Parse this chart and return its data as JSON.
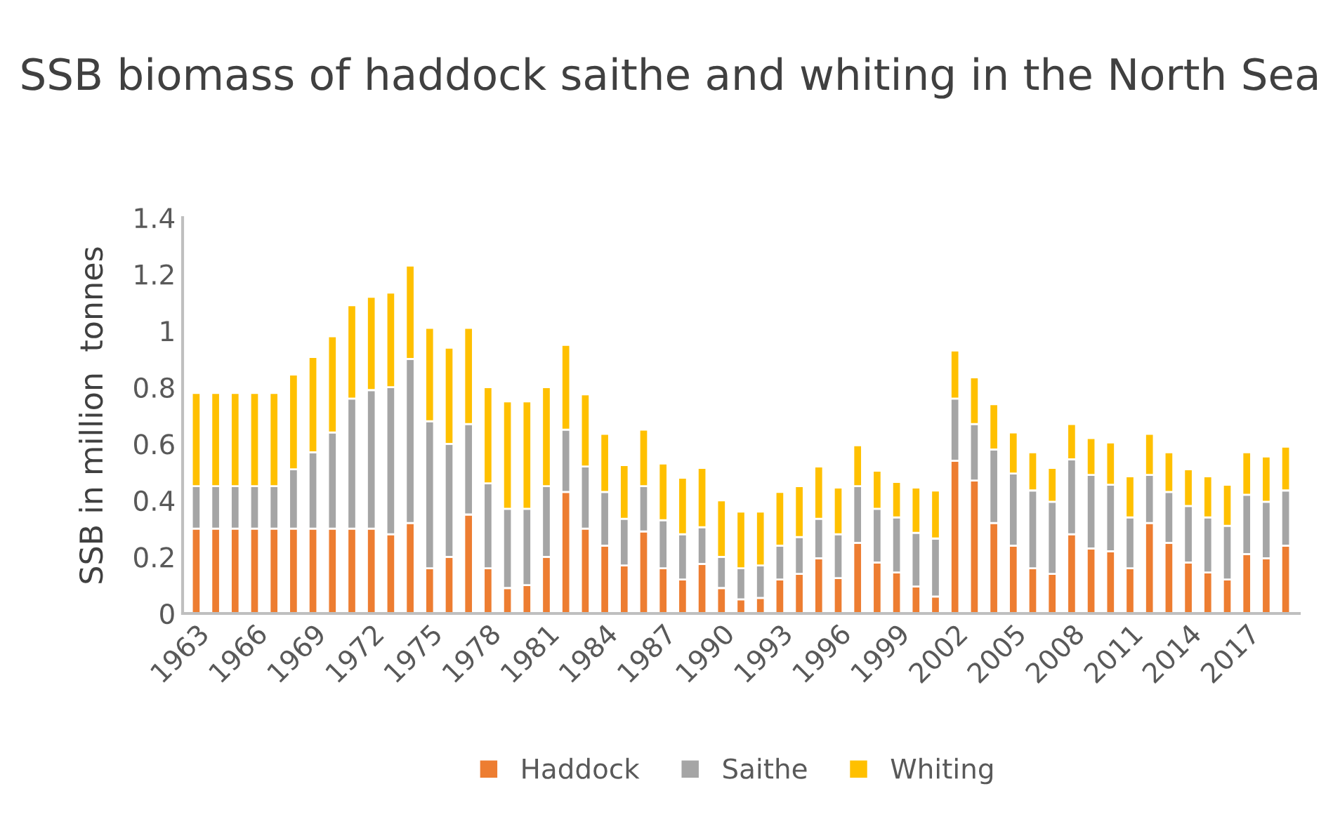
{
  "chart_data": {
    "type": "bar",
    "stacked": true,
    "title": "SSB biomass of haddock saithe and whiting in the North Sea",
    "ylabel": "SSB in million  tonnes",
    "categories": [
      "1963",
      null,
      null,
      "1966",
      null,
      null,
      "1969",
      null,
      null,
      "1972",
      null,
      null,
      "1975",
      null,
      null,
      "1978",
      null,
      null,
      "1981",
      null,
      null,
      "1984",
      null,
      null,
      "1987",
      null,
      null,
      "1990",
      null,
      null,
      "1993",
      null,
      null,
      "1996",
      null,
      null,
      "1999",
      null,
      null,
      "2002",
      null,
      null,
      "2005",
      null,
      null,
      "2008",
      null,
      null,
      "2011",
      null,
      null,
      "2014",
      null,
      null,
      "2017",
      null,
      null
    ],
    "series": [
      {
        "name": "Haddock",
        "color": "#ed7d31",
        "values": [
          0.3,
          0.3,
          0.3,
          0.3,
          0.3,
          0.3,
          0.3,
          0.3,
          0.3,
          0.3,
          0.28,
          0.32,
          0.16,
          0.2,
          0.35,
          0.16,
          0.09,
          0.1,
          0.2,
          0.43,
          0.3,
          0.24,
          0.17,
          0.29,
          0.16,
          0.12,
          0.175,
          0.09,
          0.05,
          0.055,
          0.12,
          0.14,
          0.195,
          0.125,
          0.25,
          0.18,
          0.145,
          0.095,
          0.06,
          0.54,
          0.47,
          0.32,
          0.24,
          0.16,
          0.14,
          0.28,
          0.23,
          0.22,
          0.16,
          0.32,
          0.25,
          0.18,
          0.145,
          0.12,
          0.21,
          0.195,
          0.24
        ]
      },
      {
        "name": "Saithe",
        "color": "#a5a5a5",
        "values": [
          0.15,
          0.15,
          0.15,
          0.15,
          0.15,
          0.21,
          0.27,
          0.34,
          0.46,
          0.49,
          0.52,
          0.58,
          0.52,
          0.4,
          0.32,
          0.3,
          0.28,
          0.27,
          0.25,
          0.22,
          0.22,
          0.19,
          0.165,
          0.16,
          0.17,
          0.16,
          0.13,
          0.11,
          0.11,
          0.115,
          0.12,
          0.13,
          0.14,
          0.155,
          0.2,
          0.19,
          0.195,
          0.19,
          0.205,
          0.22,
          0.2,
          0.26,
          0.255,
          0.275,
          0.255,
          0.265,
          0.26,
          0.235,
          0.18,
          0.17,
          0.18,
          0.2,
          0.195,
          0.19,
          0.21,
          0.2,
          0.195
        ]
      },
      {
        "name": "Whiting",
        "color": "#ffc000",
        "values": [
          0.33,
          0.33,
          0.33,
          0.33,
          0.33,
          0.335,
          0.337,
          0.34,
          0.33,
          0.33,
          0.335,
          0.33,
          0.33,
          0.34,
          0.34,
          0.34,
          0.38,
          0.38,
          0.35,
          0.3,
          0.255,
          0.205,
          0.19,
          0.2,
          0.2,
          0.2,
          0.21,
          0.2,
          0.2,
          0.19,
          0.19,
          0.18,
          0.185,
          0.165,
          0.145,
          0.135,
          0.125,
          0.16,
          0.17,
          0.17,
          0.165,
          0.16,
          0.145,
          0.135,
          0.12,
          0.125,
          0.13,
          0.15,
          0.145,
          0.145,
          0.14,
          0.13,
          0.145,
          0.145,
          0.15,
          0.16,
          0.155
        ]
      }
    ],
    "ylim": [
      0,
      1.4
    ],
    "yticks": [
      0,
      0.2,
      0.4,
      0.6,
      0.8,
      1,
      1.2,
      1.4
    ],
    "grid": false,
    "legend": "bottom"
  }
}
